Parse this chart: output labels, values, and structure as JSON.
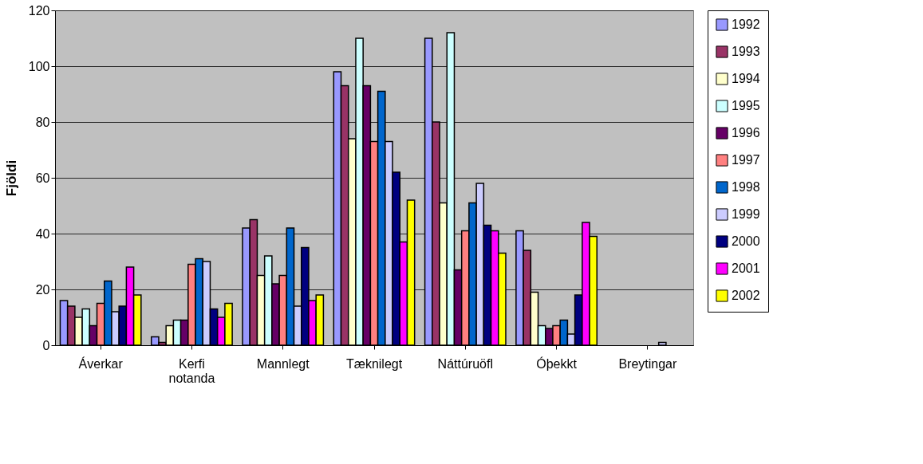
{
  "chart_data": {
    "type": "bar",
    "ylabel": "Fjöldi",
    "categories": [
      "Áverkar",
      "Kerfi notanda",
      "Mannlegt",
      "Tæknilegt",
      "Náttúruöfl",
      "Óþekkt",
      "Breytingar"
    ],
    "ylim": [
      0,
      120
    ],
    "yticks": [
      0,
      20,
      40,
      60,
      80,
      100,
      120
    ],
    "grid": "y",
    "legend": "right",
    "series": [
      {
        "name": "1992",
        "color": "#9999ff",
        "values": [
          16,
          3,
          42,
          98,
          110,
          41,
          0
        ]
      },
      {
        "name": "1993",
        "color": "#993366",
        "values": [
          14,
          1,
          45,
          93,
          80,
          34,
          0
        ]
      },
      {
        "name": "1994",
        "color": "#ffffcc",
        "values": [
          10,
          7,
          25,
          74,
          51,
          19,
          0
        ]
      },
      {
        "name": "1995",
        "color": "#ccffff",
        "values": [
          13,
          9,
          32,
          110,
          112,
          7,
          0
        ]
      },
      {
        "name": "1996",
        "color": "#660066",
        "values": [
          7,
          9,
          22,
          93,
          27,
          6,
          0
        ]
      },
      {
        "name": "1997",
        "color": "#ff8080",
        "values": [
          15,
          29,
          25,
          73,
          41,
          7,
          0
        ]
      },
      {
        "name": "1998",
        "color": "#0066cc",
        "values": [
          23,
          31,
          42,
          91,
          51,
          9,
          0
        ]
      },
      {
        "name": "1999",
        "color": "#ccccff",
        "values": [
          12,
          30,
          14,
          73,
          58,
          4,
          1
        ]
      },
      {
        "name": "2000",
        "color": "#000080",
        "values": [
          14,
          13,
          35,
          62,
          43,
          18,
          0
        ]
      },
      {
        "name": "2001",
        "color": "#ff00ff",
        "values": [
          28,
          10,
          16,
          37,
          41,
          44,
          0
        ]
      },
      {
        "name": "2002",
        "color": "#ffff00",
        "values": [
          18,
          15,
          18,
          52,
          33,
          39,
          0
        ]
      }
    ]
  }
}
